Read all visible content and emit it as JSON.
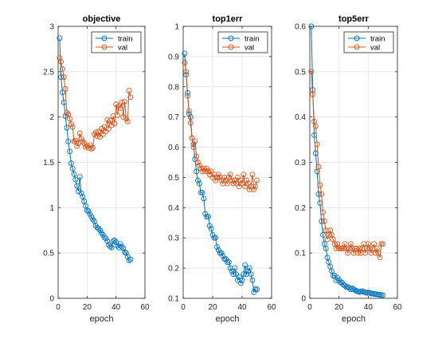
{
  "figure": {
    "background": "#ffffff",
    "axes_color": "#262626",
    "grid_color": "#e6e6e6",
    "series_colors": {
      "train": "#0072BD",
      "val": "#D95319"
    }
  },
  "chart_data": [
    {
      "type": "line",
      "title": "objective",
      "xlabel": "epoch",
      "ylabel": "",
      "xlim": [
        0,
        60
      ],
      "ylim": [
        0,
        3
      ],
      "xticks": [
        0,
        20,
        40,
        60
      ],
      "yticks": [
        0,
        0.5,
        1,
        1.5,
        2,
        2.5,
        3
      ],
      "xtick_labels": [
        "0",
        "20",
        "40",
        "60"
      ],
      "ytick_labels": [
        "0",
        "0.5",
        "1",
        "1.5",
        "2",
        "2.5",
        "3"
      ],
      "grid": true,
      "legend": "top-right",
      "x": [
        1,
        2,
        3,
        4,
        5,
        6,
        7,
        8,
        9,
        10,
        11,
        12,
        13,
        14,
        15,
        16,
        17,
        18,
        19,
        20,
        21,
        22,
        23,
        24,
        25,
        26,
        27,
        28,
        29,
        30,
        31,
        32,
        33,
        34,
        35,
        36,
        37,
        38,
        39,
        40,
        41,
        42,
        43,
        44,
        45,
        46,
        47,
        48,
        49,
        50
      ],
      "series": [
        {
          "name": "train",
          "color": "#0072BD",
          "values": [
            2.87,
            2.44,
            2.27,
            2.16,
            2.01,
            1.88,
            1.73,
            1.62,
            1.49,
            1.43,
            1.37,
            1.31,
            1.24,
            1.18,
            1.34,
            1.16,
            1.12,
            1.07,
            1.02,
            0.97,
            0.96,
            0.93,
            0.9,
            0.87,
            0.85,
            0.8,
            0.78,
            0.77,
            0.75,
            0.72,
            0.7,
            0.67,
            0.66,
            0.63,
            0.59,
            0.57,
            0.56,
            0.63,
            0.64,
            0.62,
            0.58,
            0.56,
            0.6,
            0.57,
            0.55,
            0.51,
            0.5,
            0.46,
            0.42,
            0.43
          ]
        },
        {
          "name": "val",
          "color": "#D95319",
          "values": [
            2.65,
            2.61,
            2.53,
            2.44,
            2.31,
            2.05,
            2.03,
            1.98,
            1.92,
            1.89,
            1.73,
            1.74,
            1.68,
            1.71,
            1.82,
            1.76,
            1.73,
            1.71,
            1.67,
            1.68,
            1.66,
            1.69,
            1.65,
            1.66,
            1.81,
            1.83,
            1.79,
            1.84,
            1.78,
            1.87,
            1.81,
            1.89,
            1.84,
            1.97,
            1.87,
            1.96,
            1.91,
            2.01,
            1.93,
            2.14,
            2.02,
            2.12,
            2.1,
            2.16,
            2.0,
            2.17,
            1.98,
            1.95,
            2.29,
            2.22
          ]
        }
      ]
    },
    {
      "type": "line",
      "title": "top1err",
      "xlabel": "epoch",
      "ylabel": "",
      "xlim": [
        0,
        60
      ],
      "ylim": [
        0.1,
        1
      ],
      "xticks": [
        0,
        20,
        40,
        60
      ],
      "yticks": [
        0.1,
        0.2,
        0.3,
        0.4,
        0.5,
        0.6,
        0.7,
        0.8,
        0.9,
        1
      ],
      "xtick_labels": [
        "0",
        "20",
        "40",
        "60"
      ],
      "ytick_labels": [
        "0.1",
        "0.2",
        "0.3",
        "0.4",
        "0.5",
        "0.6",
        "0.7",
        "0.8",
        "0.9",
        "1"
      ],
      "grid": true,
      "legend": "top-right",
      "x": [
        1,
        2,
        3,
        4,
        5,
        6,
        7,
        8,
        9,
        10,
        11,
        12,
        13,
        14,
        15,
        16,
        17,
        18,
        19,
        20,
        21,
        22,
        23,
        24,
        25,
        26,
        27,
        28,
        29,
        30,
        31,
        32,
        33,
        34,
        35,
        36,
        37,
        38,
        39,
        40,
        41,
        42,
        43,
        44,
        45,
        46,
        47,
        48,
        49,
        50
      ],
      "series": [
        {
          "name": "train",
          "color": "#0072BD",
          "values": [
            0.91,
            0.84,
            0.78,
            0.71,
            0.7,
            0.63,
            0.61,
            0.56,
            0.52,
            0.49,
            0.48,
            0.45,
            0.45,
            0.43,
            0.38,
            0.37,
            0.37,
            0.34,
            0.33,
            0.31,
            0.3,
            0.3,
            0.27,
            0.26,
            0.25,
            0.25,
            0.24,
            0.23,
            0.23,
            0.22,
            0.22,
            0.2,
            0.19,
            0.18,
            0.2,
            0.18,
            0.16,
            0.17,
            0.15,
            0.16,
            0.18,
            0.21,
            0.18,
            0.19,
            0.2,
            0.18,
            0.16,
            0.12,
            0.13,
            0.13
          ]
        },
        {
          "name": "val",
          "color": "#D95319",
          "values": [
            0.88,
            0.85,
            0.77,
            0.72,
            0.68,
            0.63,
            0.6,
            0.62,
            0.57,
            0.55,
            0.54,
            0.53,
            0.52,
            0.53,
            0.52,
            0.53,
            0.52,
            0.51,
            0.52,
            0.5,
            0.51,
            0.49,
            0.5,
            0.51,
            0.5,
            0.49,
            0.48,
            0.5,
            0.49,
            0.48,
            0.5,
            0.51,
            0.49,
            0.48,
            0.49,
            0.48,
            0.5,
            0.47,
            0.49,
            0.48,
            0.51,
            0.47,
            0.49,
            0.48,
            0.46,
            0.47,
            0.51,
            0.46,
            0.47,
            0.49
          ]
        }
      ]
    },
    {
      "type": "line",
      "title": "top5err",
      "xlabel": "epoch",
      "ylabel": "",
      "xlim": [
        0,
        60
      ],
      "ylim": [
        0,
        0.6
      ],
      "xticks": [
        0,
        20,
        40,
        60
      ],
      "yticks": [
        0,
        0.1,
        0.2,
        0.3,
        0.4,
        0.5,
        0.6
      ],
      "xtick_labels": [
        "0",
        "20",
        "40",
        "60"
      ],
      "ytick_labels": [
        "0",
        "0.1",
        "0.2",
        "0.3",
        "0.4",
        "0.5",
        "0.6"
      ],
      "grid": true,
      "legend": "top-right",
      "x": [
        1,
        2,
        3,
        4,
        5,
        6,
        7,
        8,
        9,
        10,
        11,
        12,
        13,
        14,
        15,
        16,
        17,
        18,
        19,
        20,
        21,
        22,
        23,
        24,
        25,
        26,
        27,
        28,
        29,
        30,
        31,
        32,
        33,
        34,
        35,
        36,
        37,
        38,
        39,
        40,
        41,
        42,
        43,
        44,
        45,
        46,
        47,
        48,
        49,
        50
      ],
      "series": [
        {
          "name": "train",
          "color": "#0072BD",
          "values": [
            0.6,
            0.46,
            0.36,
            0.32,
            0.28,
            0.23,
            0.21,
            0.17,
            0.14,
            0.12,
            0.11,
            0.09,
            0.08,
            0.07,
            0.06,
            0.05,
            0.05,
            0.04,
            0.045,
            0.04,
            0.035,
            0.035,
            0.03,
            0.028,
            0.025,
            0.025,
            0.023,
            0.02,
            0.022,
            0.02,
            0.018,
            0.016,
            0.015,
            0.014,
            0.015,
            0.016,
            0.014,
            0.013,
            0.012,
            0.013,
            0.012,
            0.011,
            0.01,
            0.01,
            0.009,
            0.009,
            0.008,
            0.008,
            0.007,
            0.007
          ]
        },
        {
          "name": "val",
          "color": "#D95319",
          "values": [
            0.5,
            0.45,
            0.39,
            0.38,
            0.34,
            0.29,
            0.25,
            0.23,
            0.19,
            0.17,
            0.15,
            0.13,
            0.14,
            0.15,
            0.14,
            0.13,
            0.12,
            0.11,
            0.12,
            0.11,
            0.11,
            0.11,
            0.11,
            0.12,
            0.11,
            0.1,
            0.11,
            0.12,
            0.11,
            0.1,
            0.11,
            0.11,
            0.1,
            0.11,
            0.1,
            0.11,
            0.12,
            0.1,
            0.11,
            0.12,
            0.11,
            0.1,
            0.11,
            0.12,
            0.1,
            0.11,
            0.1,
            0.09,
            0.12,
            0.12
          ]
        }
      ]
    }
  ]
}
